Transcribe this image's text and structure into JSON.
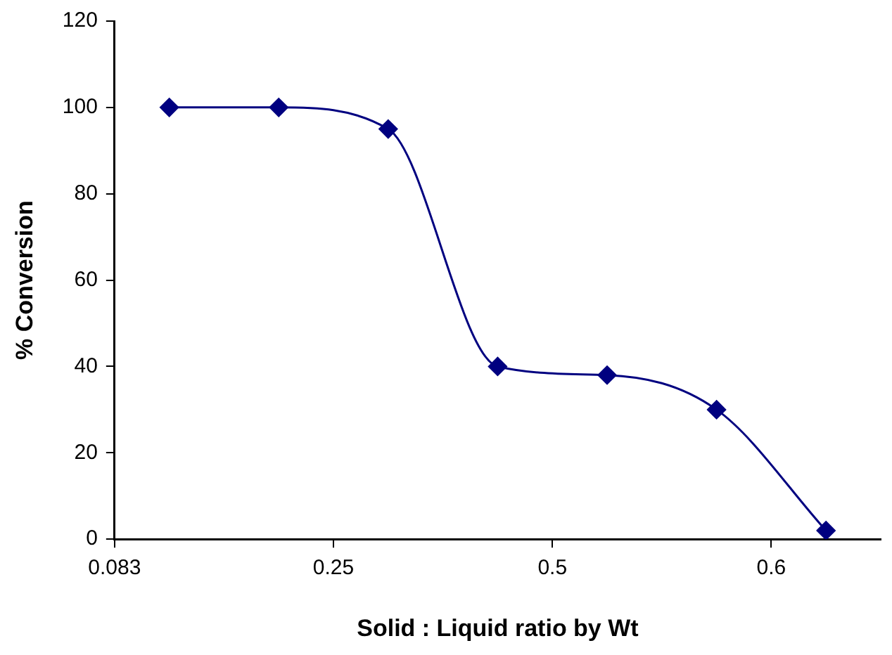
{
  "chart_data": {
    "type": "line",
    "xlabel": "Solid : Liquid ratio by Wt",
    "ylabel": "% Conversion",
    "categories": [
      "0.083",
      null,
      null,
      null,
      "0.25",
      null,
      null,
      null,
      "0.5",
      null,
      null,
      null,
      "0.6",
      null,
      null
    ],
    "series": [
      {
        "color": "#000080",
        "values": [
          null,
          100,
          null,
          100,
          null,
          95,
          null,
          40,
          null,
          38,
          null,
          30,
          null,
          2,
          null
        ]
      }
    ],
    "ylim": [
      0,
      120
    ],
    "yticks": [
      0,
      20,
      40,
      60,
      80,
      100,
      120
    ],
    "grid": false,
    "legend": false,
    "marker": "diamond",
    "line_style": "solid"
  }
}
